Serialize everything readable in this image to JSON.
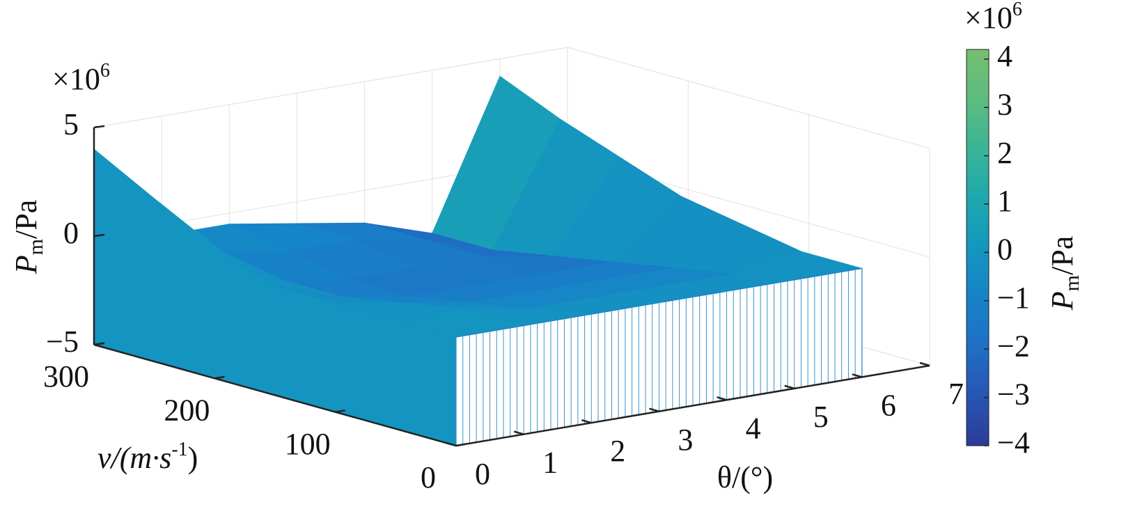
{
  "chart_data": {
    "type": "surface3d",
    "exponent": {
      "base": "×10",
      "power": "6"
    },
    "zlabel": {
      "symbol": "P",
      "subscript": "m",
      "unit": "/Pa"
    },
    "xlabel": "θ/(°)",
    "ylabel": {
      "text": "v/(m·s",
      "superscript": "-1",
      "close": ")"
    },
    "x": [
      0,
      1,
      2,
      3,
      4,
      5,
      6
    ],
    "y": [
      0,
      50,
      100,
      150,
      200,
      250,
      300
    ],
    "z": [
      [
        0,
        0,
        0,
        0,
        0,
        0,
        0
      ],
      [
        0,
        0,
        -0.5,
        -0.5,
        -0.5,
        -0.5,
        0
      ],
      [
        0,
        -0.5,
        -1,
        -1,
        -1,
        -1,
        0.5
      ],
      [
        0,
        -1,
        -1.5,
        -1.5,
        -1.5,
        -1.5,
        1
      ],
      [
        1,
        -1,
        -1.5,
        -1.5,
        -1.5,
        -2,
        2
      ],
      [
        2.5,
        -0.5,
        -1,
        -1,
        -1.5,
        -2.5,
        3
      ],
      [
        4,
        -0.5,
        -0.5,
        -1,
        -1.5,
        -2.5,
        4.2
      ]
    ],
    "xlim": [
      0,
      7
    ],
    "ylim": [
      0,
      300
    ],
    "zlim": [
      -5,
      5
    ],
    "xticks": [
      0,
      1,
      2,
      3,
      4,
      5,
      6,
      7
    ],
    "yticks": [
      0,
      100,
      200,
      300
    ],
    "zticks": [
      {
        "value": -5,
        "label": "−5"
      },
      0,
      5
    ],
    "grid": true,
    "colormap": [
      "#2c3b98",
      "#2855b4",
      "#1f6fc4",
      "#1683c8",
      "#1496bf",
      "#1ea8ad",
      "#3bb497",
      "#5dbb80",
      "#76bf6f"
    ],
    "colorbar": {
      "clim": [
        -4,
        4.2
      ],
      "ticks": [
        {
          "value": -4,
          "label": "−4"
        },
        {
          "value": -3,
          "label": "−3"
        },
        {
          "value": -2,
          "label": "−2"
        },
        {
          "value": -1,
          "label": "−1"
        },
        0,
        1,
        2,
        3,
        4
      ],
      "label": {
        "symbol": "P",
        "subscript": "m",
        "unit": "/Pa"
      },
      "exponent": {
        "base": "×10",
        "power": "6"
      }
    }
  }
}
